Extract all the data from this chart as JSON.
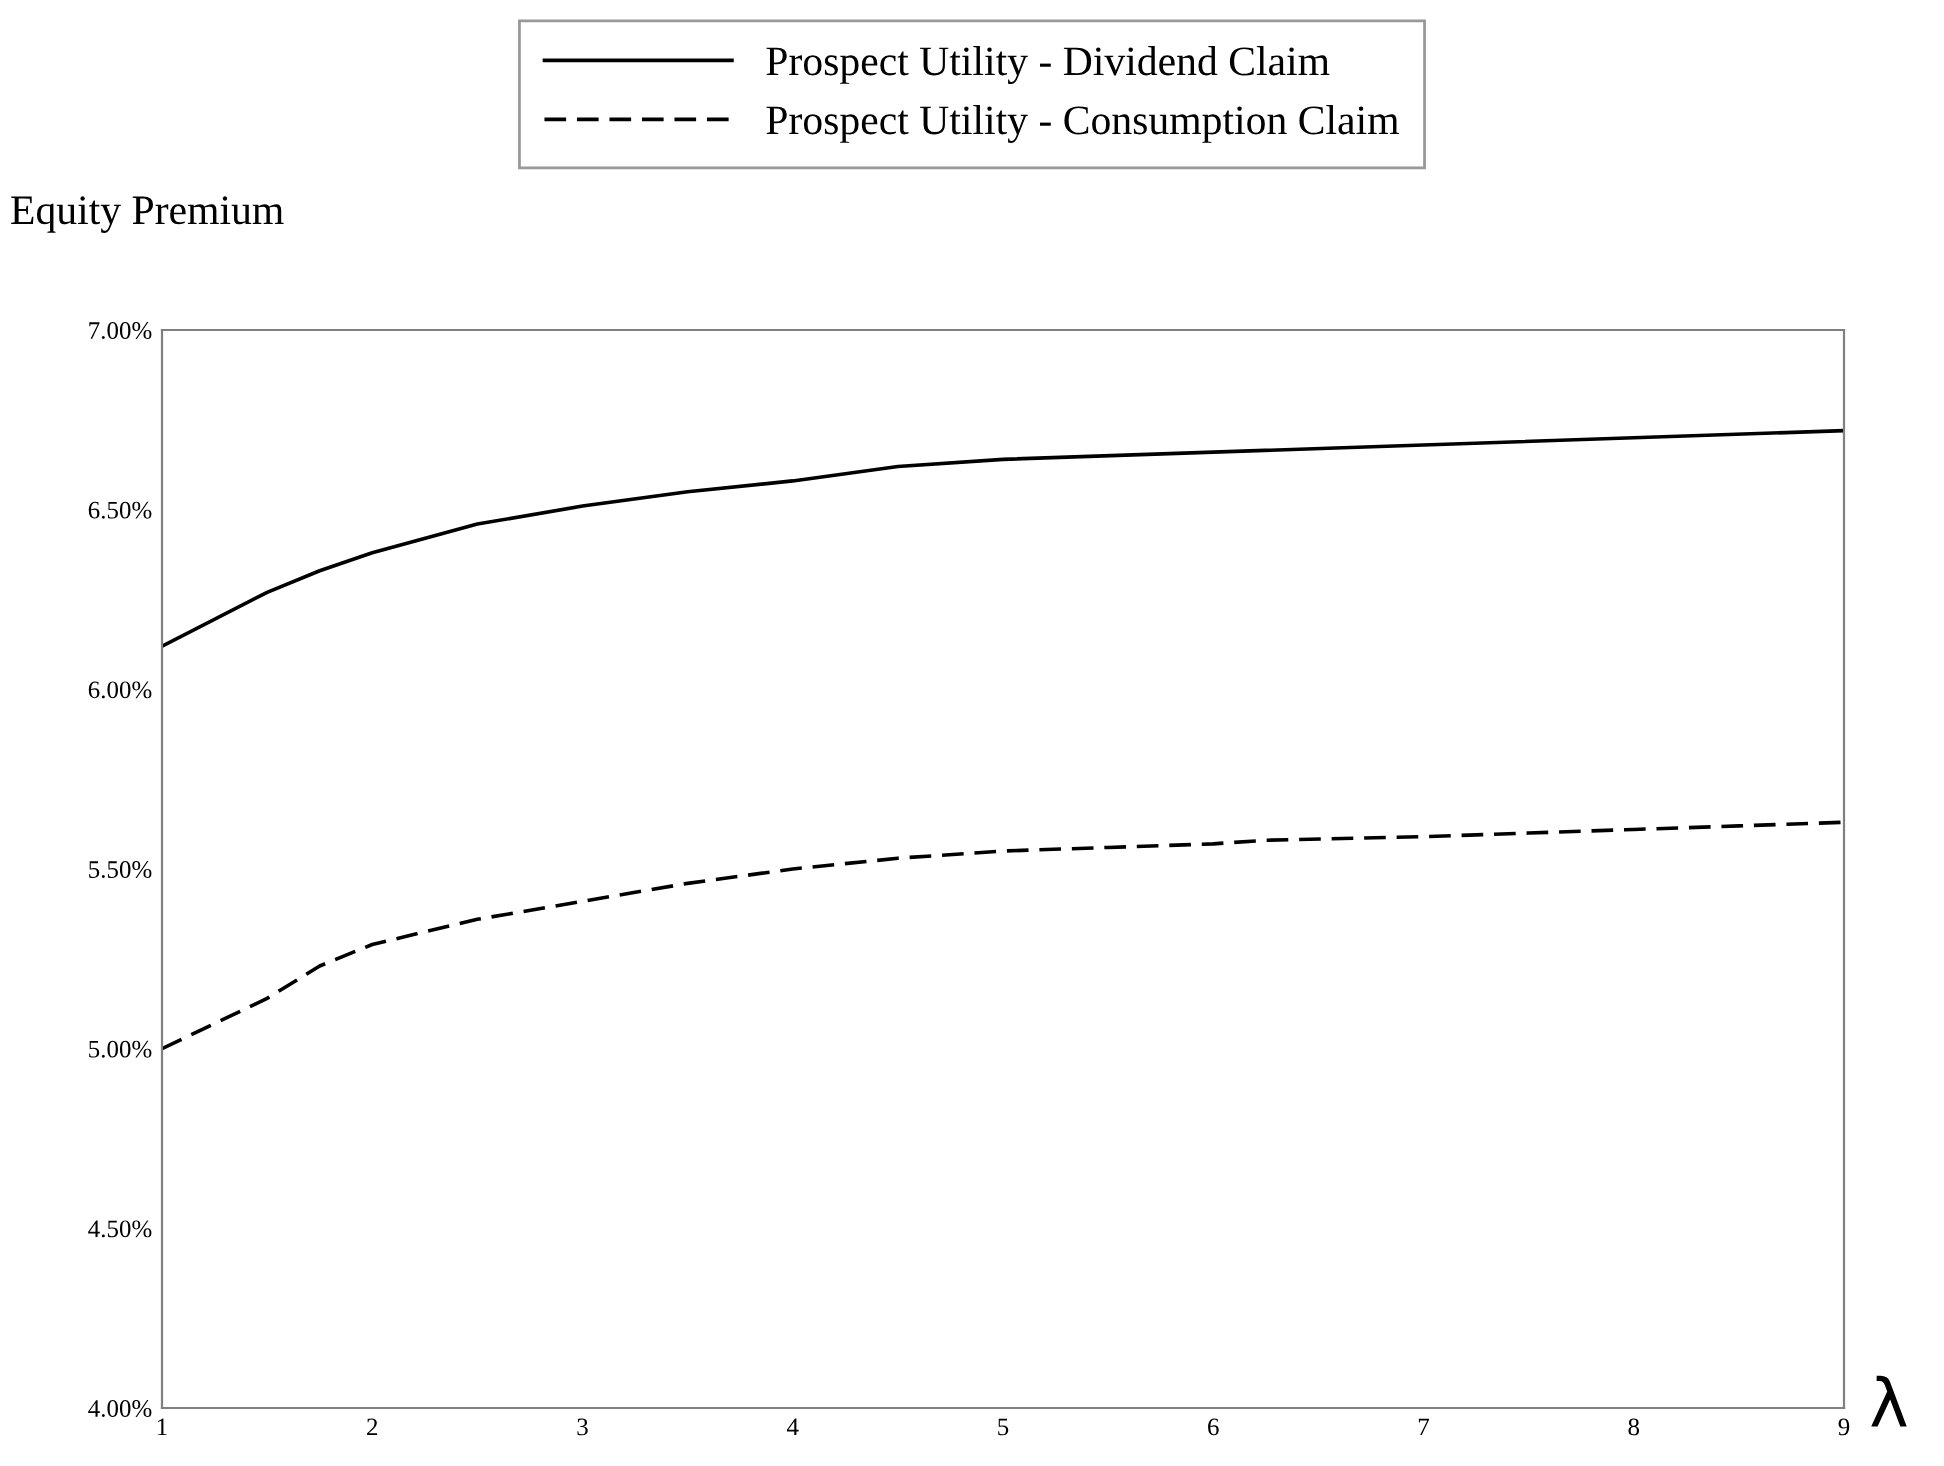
{
  "chart_data": {
    "type": "line",
    "ylabel": "Equity Premium",
    "xlabel": "λ",
    "series": [
      {
        "name": "Prospect Utility - Dividend Claim",
        "color": "#000000",
        "line_style": "solid",
        "x": [
          1,
          1.5,
          1.75,
          2,
          2.5,
          3,
          3.5,
          4,
          4.5,
          5,
          6,
          7,
          8,
          9
        ],
        "values": [
          6.12,
          6.27,
          6.33,
          6.38,
          6.46,
          6.51,
          6.55,
          6.58,
          6.62,
          6.64,
          6.66,
          6.68,
          6.7,
          6.72
        ]
      },
      {
        "name": "Prospect Utility - Consumption Claim",
        "color": "#000000",
        "line_style": "dashed",
        "x": [
          1,
          1.5,
          1.75,
          2,
          2.5,
          3,
          3.5,
          4,
          4.5,
          5,
          5.5,
          6,
          6.25,
          7,
          7.5,
          8,
          8.5,
          9
        ],
        "values": [
          5.0,
          5.14,
          5.23,
          5.29,
          5.36,
          5.41,
          5.46,
          5.5,
          5.53,
          5.55,
          5.56,
          5.57,
          5.58,
          5.59,
          5.6,
          5.61,
          5.62,
          5.63
        ]
      }
    ],
    "xlim": [
      1,
      9
    ],
    "xticks": [
      1,
      2,
      3,
      4,
      5,
      6,
      7,
      8,
      9
    ],
    "ylim": [
      4,
      7
    ],
    "yticks": [
      {
        "value": 4,
        "label": "4.00%"
      },
      {
        "value": 4.5,
        "label": "4.50%"
      },
      {
        "value": 5,
        "label": "5.00%"
      },
      {
        "value": 5.5,
        "label": "5.50%"
      },
      {
        "value": 6,
        "label": "6.00%"
      },
      {
        "value": 6.5,
        "label": "6.50%"
      },
      {
        "value": 7,
        "label": "7.00%"
      }
    ],
    "grid": false,
    "legend": "top",
    "marker": "none"
  }
}
